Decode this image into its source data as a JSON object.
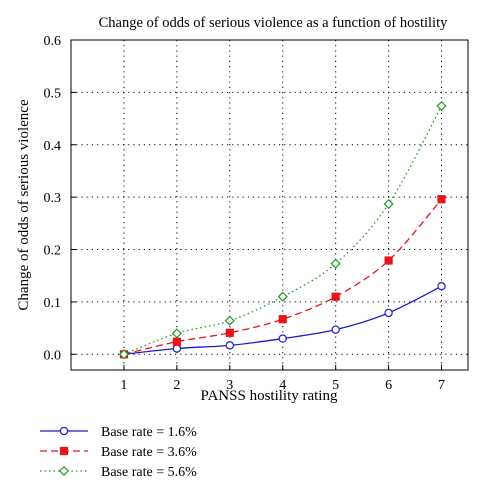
{
  "chart_data": {
    "type": "line",
    "title": "Change of odds of serious violence as a function of hostility",
    "xlabel": "PANSS hostility rating",
    "ylabel": "Change of odds of serious violence",
    "x": [
      1,
      2,
      3,
      4,
      5,
      6,
      7
    ],
    "xlim": [
      0,
      7.5
    ],
    "ylim": [
      -0.03,
      0.6
    ],
    "xticks": [
      "1",
      "2",
      "3",
      "4",
      "5",
      "6",
      "7"
    ],
    "yticks": [
      "0.0",
      "0.1",
      "0.2",
      "0.3",
      "0.4",
      "0.5",
      "0.6"
    ],
    "grid": true,
    "legend_position": "below",
    "series": [
      {
        "name": "Base rate = 1.6%",
        "values": [
          0.0,
          0.011,
          0.017,
          0.03,
          0.047,
          0.079,
          0.13
        ],
        "color": "#1a1acc",
        "marker": "circle",
        "linestyle": "solid"
      },
      {
        "name": "Base rate = 3.6%",
        "values": [
          0.0,
          0.024,
          0.041,
          0.067,
          0.11,
          0.179,
          0.296
        ],
        "color": "#e8141c",
        "marker": "square",
        "linestyle": "dashed"
      },
      {
        "name": "Base rate = 5.6%",
        "values": [
          0.0,
          0.04,
          0.064,
          0.11,
          0.173,
          0.287,
          0.474
        ],
        "color": "#1e9a1e",
        "marker": "diamond",
        "linestyle": "dotted"
      }
    ]
  }
}
